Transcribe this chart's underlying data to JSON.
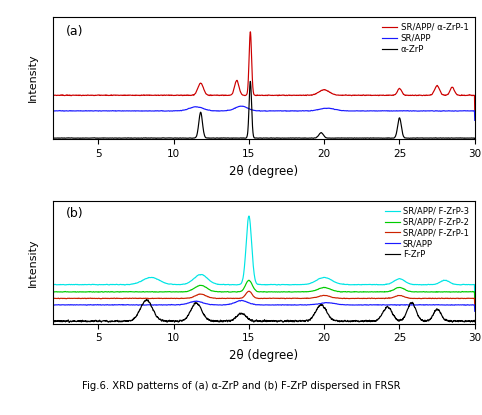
{
  "title": "Fig.6. XRD patterns of (a) α-ZrP and (b) F-ZrP dispersed in FRSR",
  "xlabel": "2θ (degree)",
  "ylabel": "Intensity",
  "xlim": [
    2,
    30
  ],
  "panel_a": {
    "label": "(a)",
    "legend": [
      "SR/APP/ α-ZrP-1",
      "SR/APP",
      "α-ZrP"
    ],
    "colors": [
      "#cc0000",
      "#1a1aff",
      "#000000"
    ]
  },
  "panel_b": {
    "label": "(b)",
    "legend": [
      "SR/APP/ F-ZrP-3",
      "SR/APP/ F-ZrP-2",
      "SR/APP/ F-ZrP-1",
      "SR/APP",
      "F-ZrP"
    ],
    "colors": [
      "#00e5e5",
      "#00cc00",
      "#cc2200",
      "#1a1aff",
      "#000000"
    ]
  }
}
